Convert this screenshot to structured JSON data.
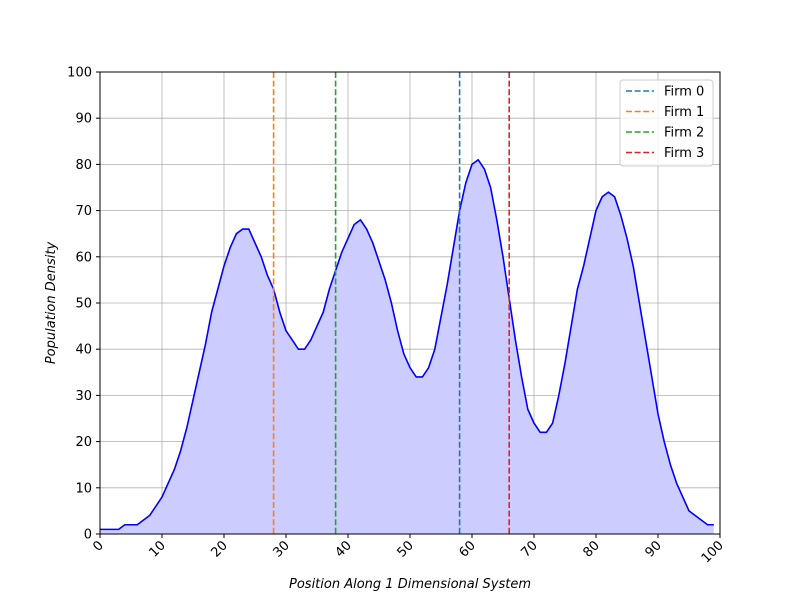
{
  "chart_data": {
    "type": "line",
    "title": "",
    "xlabel": "Position Along 1 Dimensional System",
    "ylabel": "Population Density",
    "xlim": [
      0,
      100
    ],
    "ylim": [
      0,
      100
    ],
    "xticks": [
      0,
      10,
      20,
      30,
      40,
      50,
      60,
      70,
      80,
      90,
      100
    ],
    "yticks": [
      0,
      10,
      20,
      30,
      40,
      50,
      60,
      70,
      80,
      90,
      100
    ],
    "grid": true,
    "legend_position": "top-right",
    "colors": {
      "density_line": "#0000ff",
      "density_fill": "#ccccff",
      "grid": "#b0b0b0"
    },
    "series": [
      {
        "kind": "density",
        "x": [
          0,
          1,
          2,
          3,
          4,
          5,
          6,
          7,
          8,
          9,
          10,
          11,
          12,
          13,
          14,
          15,
          16,
          17,
          18,
          19,
          20,
          21,
          22,
          23,
          24,
          25,
          26,
          27,
          28,
          29,
          30,
          31,
          32,
          33,
          34,
          35,
          36,
          37,
          38,
          39,
          40,
          41,
          42,
          43,
          44,
          45,
          46,
          47,
          48,
          49,
          50,
          51,
          52,
          53,
          54,
          55,
          56,
          57,
          58,
          59,
          60,
          61,
          62,
          63,
          64,
          65,
          66,
          67,
          68,
          69,
          70,
          71,
          72,
          73,
          74,
          75,
          76,
          77,
          78,
          79,
          80,
          81,
          82,
          83,
          84,
          85,
          86,
          87,
          88,
          89,
          90,
          91,
          92,
          93,
          94,
          95,
          96,
          97,
          98,
          99
        ],
        "y": [
          1,
          1,
          1,
          1,
          2,
          2,
          2,
          3,
          4,
          6,
          8,
          11,
          14,
          18,
          23,
          29,
          35,
          41,
          48,
          53,
          58,
          62,
          65,
          66,
          66,
          63,
          60,
          56,
          53,
          48,
          44,
          42,
          40,
          40,
          42,
          45,
          48,
          53,
          57,
          61,
          64,
          67,
          68,
          66,
          63,
          59,
          55,
          50,
          44,
          39,
          36,
          34,
          34,
          36,
          40,
          47,
          54,
          62,
          70,
          76,
          80,
          81,
          79,
          75,
          68,
          60,
          51,
          42,
          34,
          27,
          24,
          22,
          22,
          24,
          30,
          37,
          45,
          53,
          58,
          64,
          70,
          73,
          74,
          73,
          69,
          64,
          58,
          50,
          42,
          34,
          26,
          20,
          15,
          11,
          8,
          5,
          4,
          3,
          2,
          2
        ]
      }
    ],
    "vlines": [
      {
        "name": "Firm 0",
        "x": 58,
        "color": "#1f77b4"
      },
      {
        "name": "Firm 1",
        "x": 28,
        "color": "#ff7f0e"
      },
      {
        "name": "Firm 2",
        "x": 38,
        "color": "#2ca02c"
      },
      {
        "name": "Firm 3",
        "x": 66,
        "color": "#d62728"
      }
    ]
  }
}
